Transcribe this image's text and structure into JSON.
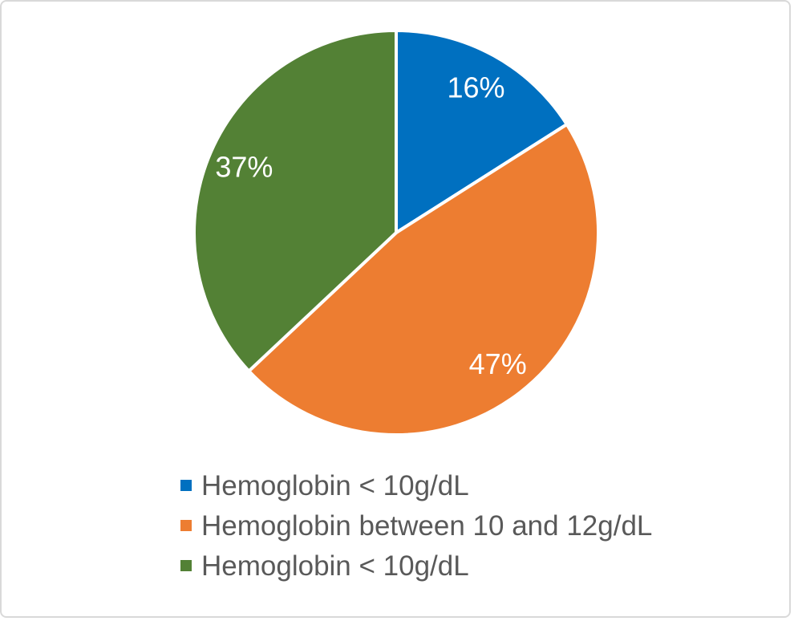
{
  "chart_data": {
    "type": "pie",
    "title": "",
    "slices": [
      {
        "name": "Hemoglobin < 10g/dL",
        "value": 16,
        "label": "16%",
        "color": "#0070C0"
      },
      {
        "name": "Hemoglobin between 10 and 12g/dL",
        "value": 47,
        "label": "47%",
        "color": "#ED7D31"
      },
      {
        "name": "Hemoglobin < 10g/dL",
        "value": 37,
        "label": "37%",
        "color": "#538135"
      }
    ],
    "start_angle_deg_from_top": 0,
    "direction": "clockwise",
    "slice_separator_color": "#FFFFFF",
    "slice_label_color": "#FFFFFF",
    "legend_position": "bottom-left",
    "legend_text_color": "#595959",
    "background_color": "#FFFFFF",
    "border_color": "#D9D9D9"
  }
}
